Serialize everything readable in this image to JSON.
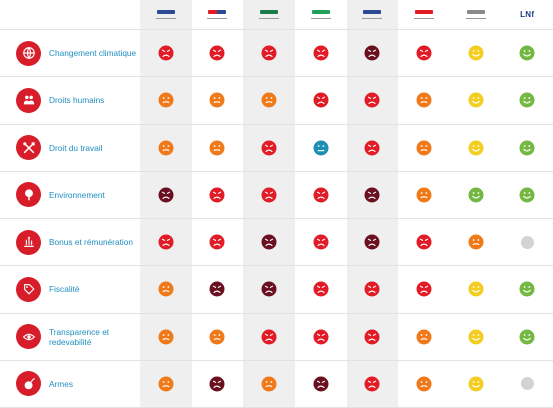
{
  "colors": {
    "red": "#e21c26",
    "orange": "#f07a1a",
    "dark": "#6b1020",
    "teal": "#1c8fb2",
    "yellow": "#f3cd1f",
    "green": "#74b843",
    "grey": "#d3d3d3",
    "icon_red": "#d81d2a",
    "label_blue": "#1f8fc0"
  },
  "banks": [
    {
      "name": "bank-1",
      "logo_text": "",
      "colors": [
        "#2a4a92",
        "#2a4a92"
      ],
      "shaded": true
    },
    {
      "name": "bank-2",
      "logo_text": "",
      "colors": [
        "#e21c26",
        "#2a4a92"
      ],
      "shaded": false
    },
    {
      "name": "bank-3",
      "logo_text": "",
      "colors": [
        "#1a7a4a",
        "#1a7a4a"
      ],
      "shaded": true
    },
    {
      "name": "bank-4",
      "logo_text": "",
      "colors": [
        "#22a05a",
        "#22a05a"
      ],
      "shaded": false
    },
    {
      "name": "bank-5",
      "logo_text": "",
      "colors": [
        "#2a4a92",
        "#2a4a92"
      ],
      "shaded": true
    },
    {
      "name": "bank-6",
      "logo_text": "",
      "colors": [
        "#e21c26",
        "#e21c26"
      ],
      "shaded": false
    },
    {
      "name": "bank-7",
      "logo_text": "",
      "colors": [
        "#8a8a8a",
        "#8a8a8a"
      ],
      "shaded": false
    },
    {
      "name": "bank-8",
      "logo_text": "LNf",
      "colors": [
        "#2a4a92",
        "#2a4a92"
      ],
      "shaded": false
    }
  ],
  "categories": [
    {
      "label": "Changement climatique",
      "icon": "globe-icon",
      "ratings": [
        "red",
        "red",
        "red",
        "red",
        "dark",
        "red",
        "yellow",
        "green"
      ]
    },
    {
      "label": "Droits humains",
      "icon": "people-icon",
      "ratings": [
        "orange",
        "orange",
        "orange",
        "red",
        "red",
        "orange",
        "yellow",
        "green"
      ]
    },
    {
      "label": "Droit du travail",
      "icon": "tools-icon",
      "ratings": [
        "orange",
        "orange",
        "red",
        "teal",
        "red",
        "orange",
        "yellow",
        "green"
      ]
    },
    {
      "label": "Environnement",
      "icon": "tree-icon",
      "ratings": [
        "dark",
        "red",
        "red",
        "red",
        "dark",
        "orange",
        "green",
        "green"
      ]
    },
    {
      "label": "Bonus et rémunération",
      "icon": "money-icon",
      "ratings": [
        "red",
        "red",
        "dark",
        "red",
        "dark",
        "red",
        "orange",
        "none"
      ]
    },
    {
      "label": "Fiscalité",
      "icon": "tag-icon",
      "ratings": [
        "orange",
        "dark",
        "dark",
        "red",
        "red",
        "red",
        "yellow",
        "green"
      ]
    },
    {
      "label": "Transparence et redevabilité",
      "icon": "eye-icon",
      "ratings": [
        "orange",
        "orange",
        "red",
        "red",
        "red",
        "orange",
        "yellow",
        "green"
      ]
    },
    {
      "label": "Armes",
      "icon": "bomb-icon",
      "ratings": [
        "orange",
        "dark",
        "orange",
        "dark",
        "red",
        "orange",
        "yellow",
        "none"
      ]
    }
  ]
}
